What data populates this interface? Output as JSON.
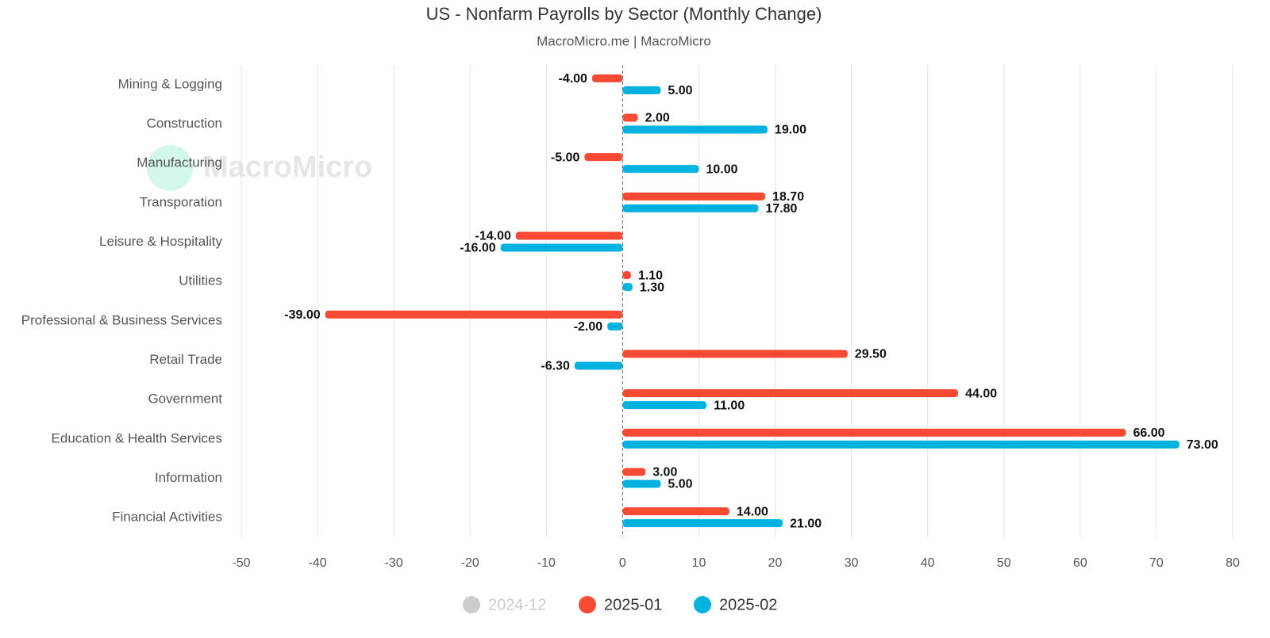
{
  "chart_data": {
    "type": "hbar",
    "title": "US - Nonfarm Payrolls by Sector (Monthly Change)",
    "subtitle": "MacroMicro.me | MacroMicro",
    "watermark": "MacroMicro",
    "categories": [
      "Mining & Logging",
      "Construction",
      "Manufacturing",
      "Transporation",
      "Leisure & Hospitality",
      "Utilities",
      "Professional & Business Services",
      "Retail Trade",
      "Government",
      "Education & Health Services",
      "Information",
      "Financial Activities"
    ],
    "series": [
      {
        "name": "2024-12",
        "color": "#cccccc",
        "hidden": true,
        "values": [
          null,
          null,
          null,
          null,
          null,
          null,
          null,
          null,
          null,
          null,
          null,
          null
        ]
      },
      {
        "name": "2025-01",
        "color": "#f94a33",
        "values": [
          -4,
          2,
          -5,
          18.7,
          -14,
          1.1,
          -39,
          29.5,
          44,
          66,
          3,
          14
        ],
        "value_labels": [
          "-4.00",
          "2.00",
          "-5.00",
          "18.70",
          "-14.00",
          "1.10",
          "-39.00",
          "29.50",
          "44.00",
          "66.00",
          "3.00",
          "14.00"
        ]
      },
      {
        "name": "2025-02",
        "color": "#00b2e0",
        "values": [
          5,
          19,
          10,
          17.8,
          -16,
          1.3,
          -2,
          -6.3,
          11,
          73,
          5,
          21
        ],
        "value_labels": [
          "5.00",
          "19.00",
          "10.00",
          "17.80",
          "-16.00",
          "1.30",
          "-2.00",
          "-6.30",
          "11.00",
          "73.00",
          "5.00",
          "21.00"
        ]
      }
    ],
    "xlim": [
      -50,
      80
    ],
    "xticks": [
      -50,
      -40,
      -30,
      -20,
      -10,
      0,
      10,
      20,
      30,
      40,
      50,
      60,
      70,
      80
    ],
    "grid": true,
    "legend": "bottom"
  }
}
